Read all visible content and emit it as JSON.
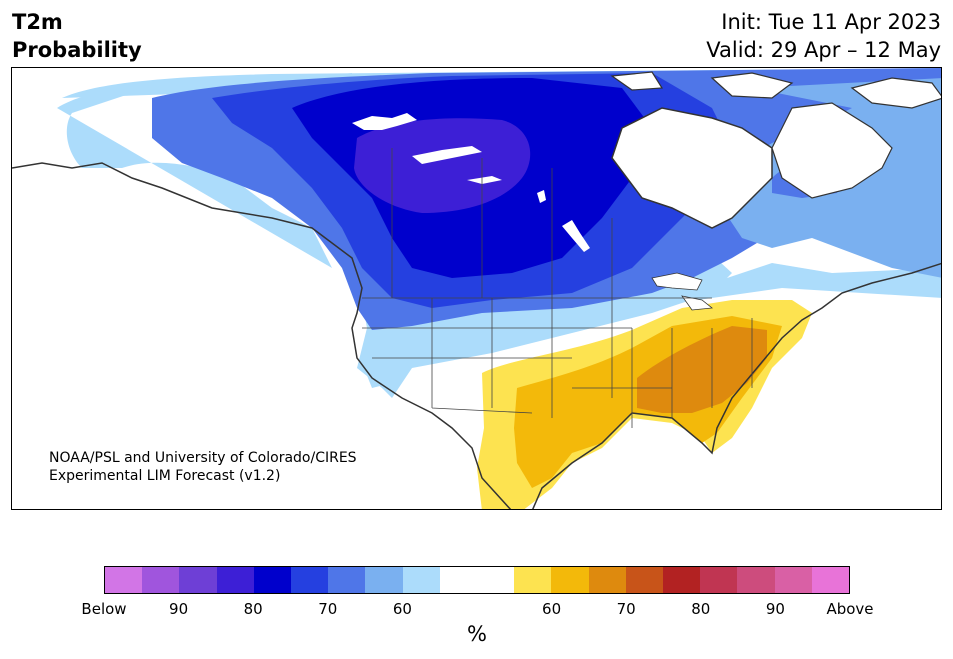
{
  "title": {
    "line1": "T2m",
    "line2": "Probability"
  },
  "init": "Init: Tue 11 Apr 2023",
  "valid": "Valid: 29 Apr – 12 May",
  "credit": {
    "line1": "NOAA/PSL and University of Colorado/CIRES",
    "line2": "Experimental LIM Forecast (v1.2)"
  },
  "colorbar": {
    "colors": [
      "#d275e6",
      "#a055dd",
      "#6e3fd6",
      "#3d1fd6",
      "#0000cc",
      "#2540e0",
      "#4f76e8",
      "#7ab0f0",
      "#acdcfb",
      "#ffffff",
      "#ffffff",
      "#fde350",
      "#f3b90a",
      "#de8a0e",
      "#c85419",
      "#b22222",
      "#c03552",
      "#cd4c7d",
      "#d960a5",
      "#e873d8"
    ],
    "ticks": [
      "Below",
      "90",
      "80",
      "70",
      "60",
      "60",
      "70",
      "80",
      "90",
      "Above"
    ],
    "unit": "%"
  },
  "map": {
    "region": "North America",
    "variable": "2 m temperature tercile probability",
    "colors": {
      "below_60": "#acdcfb",
      "below_70": "#4f76e8",
      "below_80": "#0000cc",
      "below_90": "#3d1fd6",
      "above_60": "#fde350",
      "above_70": "#f3b90a",
      "above_80": "#de8a0e",
      "land_outline": "#333333",
      "lakes": "#ffffff"
    }
  }
}
